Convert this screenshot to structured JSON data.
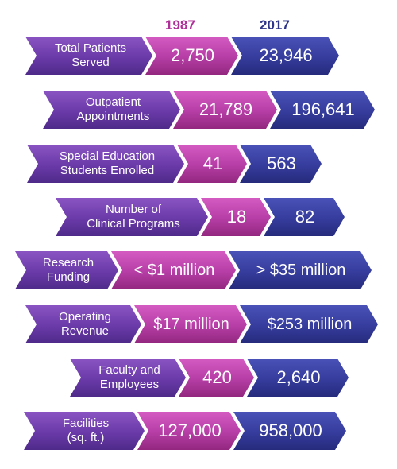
{
  "headers": {
    "year1": "1987",
    "year2": "2017"
  },
  "colors": {
    "year1": "#b0309a",
    "year2": "#2e3488",
    "label": "#6a3aa8"
  },
  "rows": [
    {
      "line1": "Total Patients",
      "line2": "Served",
      "v1987": "2,750",
      "v2017": "23,946"
    },
    {
      "line1": "Outpatient",
      "line2": "Appointments",
      "v1987": "21,789",
      "v2017": "196,641"
    },
    {
      "line1": "Special Education",
      "line2": "Students Enrolled",
      "v1987": "41",
      "v2017": "563"
    },
    {
      "line1": "Number of",
      "line2": "Clinical Programs",
      "v1987": "18",
      "v2017": "82"
    },
    {
      "line1": "Research",
      "line2": "Funding",
      "v1987": "< $1 million",
      "v2017": "> $35 million"
    },
    {
      "line1": "Operating",
      "line2": "Revenue",
      "v1987": "$17 million",
      "v2017": "$253 million"
    },
    {
      "line1": "Faculty and",
      "line2": "Employees",
      "v1987": "420",
      "v2017": "2,640"
    },
    {
      "line1": "Facilities",
      "line2": "(sq. ft.)",
      "v1987": "127,000",
      "v2017": "958,000"
    }
  ]
}
